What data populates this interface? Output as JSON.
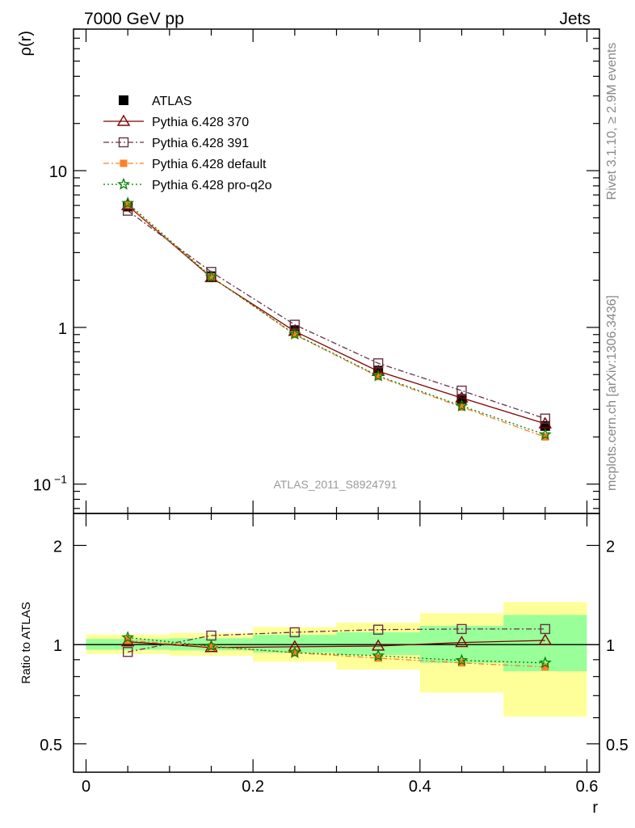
{
  "header": {
    "left": "7000 GeV pp",
    "right": "Jets"
  },
  "side_labels": {
    "rivet": "Rivet 3.1.10, ≥ 2.9M events",
    "mcplots": "mcplots.cern.ch [arXiv:1306.3436]"
  },
  "watermark": "ATLAS_2011_S8924791",
  "colors": {
    "atlas": "#000000",
    "p370": "#7f0000",
    "p391": "#663344",
    "pdefault": "#ff7f2a",
    "pq2o": "#008000",
    "band_yellow": "#ffff99",
    "band_green": "#99ff99"
  },
  "chart_data": [
    {
      "type": "line",
      "ylabel": "ρ(r)",
      "yscale": "log",
      "ylim": [
        0.065,
        80
      ],
      "xlim": [
        -0.015,
        0.615
      ],
      "y_ticks": [
        {
          "v": 0.1,
          "base": "10",
          "exp": "−1"
        },
        {
          "v": 1,
          "base": "1",
          "exp": ""
        },
        {
          "v": 10,
          "base": "10",
          "exp": ""
        }
      ],
      "x": [
        0.05,
        0.15,
        0.25,
        0.35,
        0.45,
        0.55
      ],
      "series": [
        {
          "name": "ATLAS",
          "key": "atlas",
          "marker": "filled-square",
          "line": "none",
          "values": [
            5.9,
            2.12,
            0.96,
            0.53,
            0.35,
            0.235
          ]
        },
        {
          "name": "Pythia 6.428 370",
          "key": "p370",
          "marker": "open-triangle",
          "line": "solid",
          "values": [
            5.98,
            2.08,
            0.945,
            0.525,
            0.355,
            0.243
          ]
        },
        {
          "name": "Pythia 6.428 391",
          "key": "p391",
          "marker": "open-square",
          "line": "dashdot",
          "values": [
            5.55,
            2.26,
            1.04,
            0.59,
            0.395,
            0.262
          ]
        },
        {
          "name": "Pythia 6.428 default",
          "key": "pdefault",
          "marker": "filled-square-small",
          "line": "dashdot",
          "values": [
            6.05,
            2.1,
            0.9,
            0.485,
            0.31,
            0.2
          ]
        },
        {
          "name": "Pythia 6.428 pro-q2o",
          "key": "pq2o",
          "marker": "star",
          "line": "dotted",
          "values": [
            6.2,
            2.1,
            0.905,
            0.49,
            0.315,
            0.207
          ]
        }
      ]
    },
    {
      "type": "line",
      "ylabel": "Ratio to ATLAS",
      "xlabel": "r",
      "yscale": "log",
      "ylim": [
        0.41,
        2.5
      ],
      "xlim": [
        -0.015,
        0.615
      ],
      "y_ticks": [
        0.5,
        1,
        2
      ],
      "x_ticks": [
        0,
        0.2,
        0.4,
        0.6
      ],
      "x_tick_labels": [
        "0",
        "0.2",
        "0.4",
        "0.6"
      ],
      "bins": [
        [
          0.0,
          0.1
        ],
        [
          0.1,
          0.2
        ],
        [
          0.2,
          0.3
        ],
        [
          0.3,
          0.4
        ],
        [
          0.4,
          0.5
        ],
        [
          0.5,
          0.6
        ]
      ],
      "band_yellow": [
        [
          0.937,
          1.073
        ],
        [
          0.925,
          1.085
        ],
        [
          0.887,
          1.13
        ],
        [
          0.84,
          1.165
        ],
        [
          0.715,
          1.245
        ],
        [
          0.605,
          1.345
        ]
      ],
      "band_green": [
        [
          0.964,
          1.04
        ],
        [
          0.96,
          1.045
        ],
        [
          0.945,
          1.07
        ],
        [
          0.93,
          1.09
        ],
        [
          0.88,
          1.14
        ],
        [
          0.83,
          1.23
        ]
      ],
      "series": [
        {
          "name": "Pythia 6.428 370",
          "key": "p370",
          "marker": "open-triangle",
          "line": "solid",
          "values": [
            1.02,
            0.98,
            0.985,
            0.99,
            1.015,
            1.03
          ]
        },
        {
          "name": "Pythia 6.428 391",
          "key": "p391",
          "marker": "open-square",
          "line": "dashdot",
          "values": [
            0.95,
            1.065,
            1.09,
            1.11,
            1.115,
            1.115
          ]
        },
        {
          "name": "Pythia 6.428 default",
          "key": "pdefault",
          "marker": "filled-square-small",
          "line": "dashdot",
          "values": [
            1.03,
            0.985,
            0.945,
            0.91,
            0.88,
            0.855
          ]
        },
        {
          "name": "Pythia 6.428 pro-q2o",
          "key": "pq2o",
          "marker": "star",
          "line": "dotted",
          "values": [
            1.05,
            0.99,
            0.945,
            0.925,
            0.895,
            0.88
          ]
        }
      ]
    }
  ]
}
